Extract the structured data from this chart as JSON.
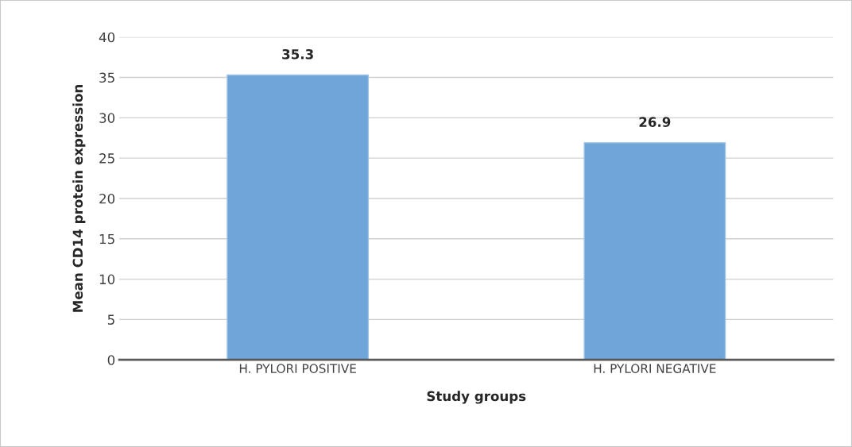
{
  "chart_data": {
    "type": "bar",
    "xlabel": "Study groups",
    "ylabel": "Mean CD14 protein expression",
    "categories": [
      "H. PYLORI POSITIVE",
      "H. PYLORI NEGATIVE"
    ],
    "values": [
      35.3,
      26.9
    ],
    "color": "#6fa6d9",
    "ylim": [
      0,
      40
    ],
    "yticks": [
      0,
      5,
      10,
      15,
      20,
      25,
      30,
      35,
      40
    ],
    "grid": "y",
    "data_labels": true
  }
}
